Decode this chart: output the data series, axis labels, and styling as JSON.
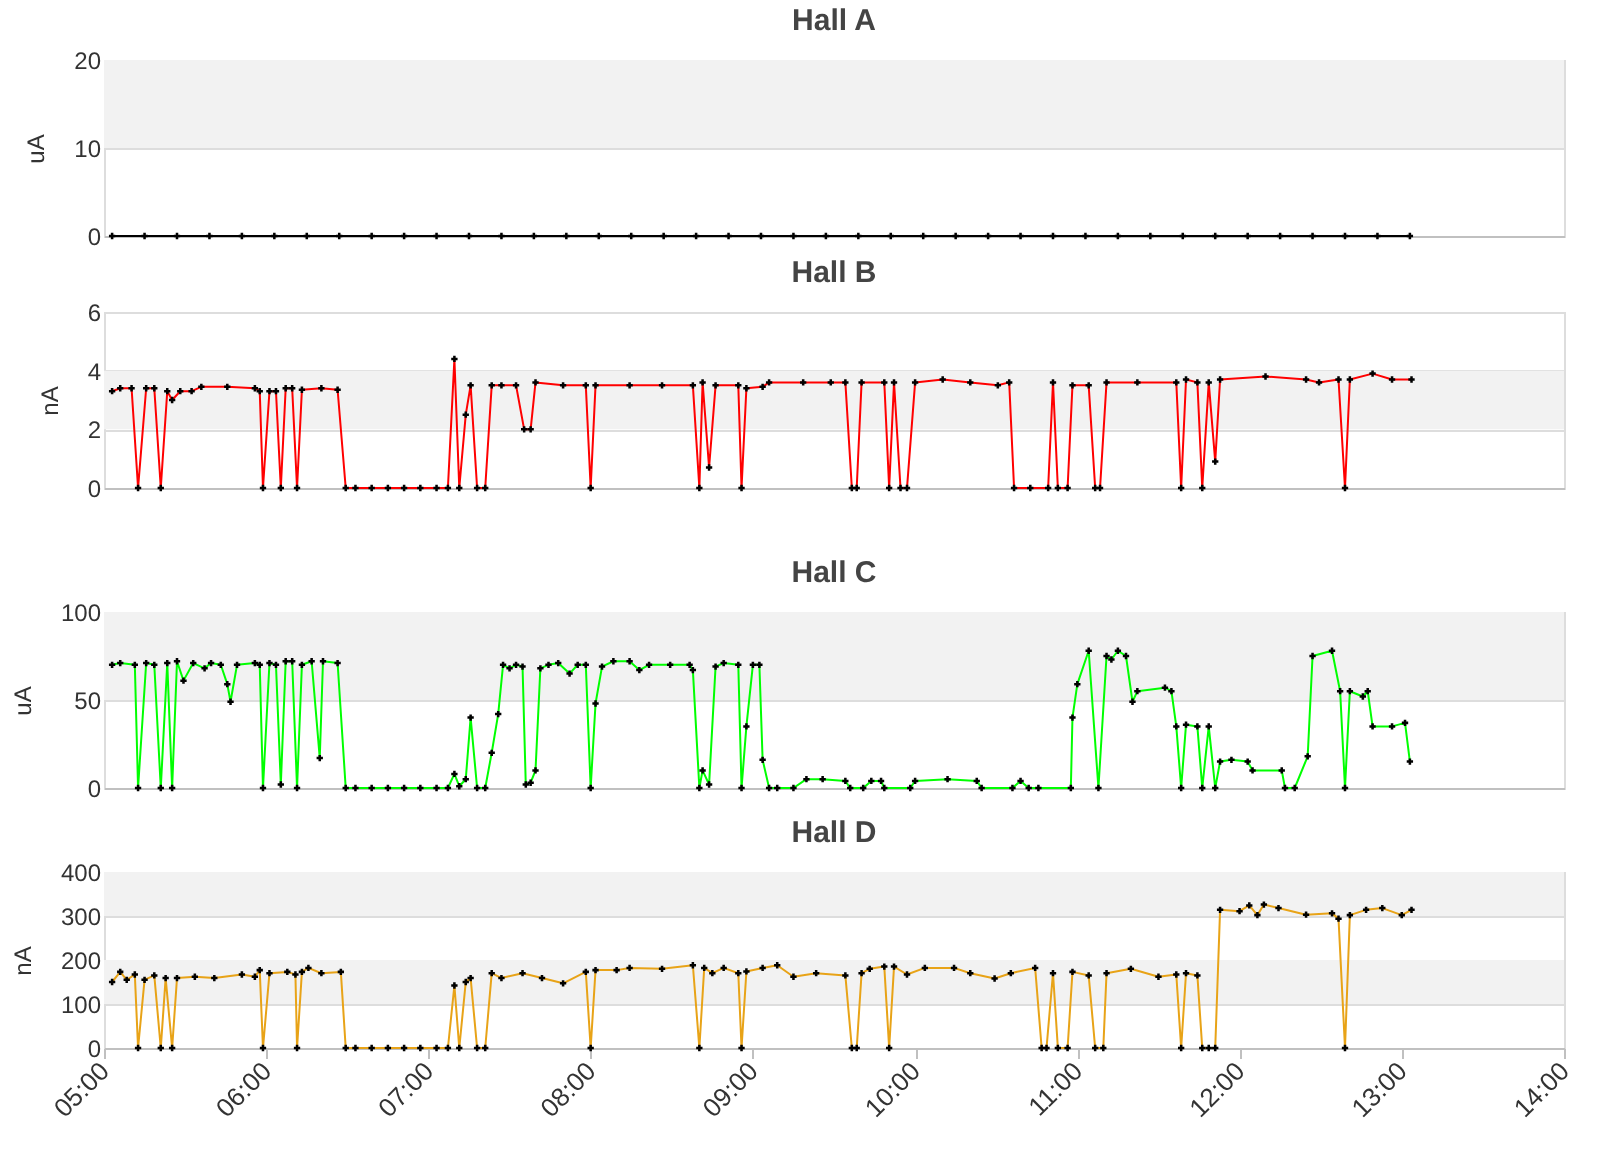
{
  "chart_data": [
    {
      "type": "line",
      "title": "Hall A",
      "ylabel": "uA",
      "marker": "cross",
      "grid": "y",
      "tick_labels": "y",
      "xlim": [
        5,
        14
      ],
      "ylim": [
        0,
        20
      ],
      "yticks": [
        0,
        10,
        20
      ],
      "bands": [
        {
          "axis": "y",
          "from": 10,
          "to": 20,
          "color": "#f2f2f2"
        }
      ],
      "x": [
        5.05,
        5.25,
        5.45,
        5.65,
        5.85,
        6.05,
        6.25,
        6.45,
        6.65,
        6.85,
        7.05,
        7.25,
        7.45,
        7.65,
        7.85,
        8.05,
        8.25,
        8.45,
        8.65,
        8.85,
        9.05,
        9.25,
        9.45,
        9.65,
        9.85,
        10.05,
        10.25,
        10.45,
        10.65,
        10.85,
        11.05,
        11.25,
        11.45,
        11.65,
        11.85,
        12.05,
        12.25,
        12.45,
        12.65,
        12.85,
        13.05
      ],
      "series": [
        {
          "color": "#000000",
          "values": [
            0,
            0,
            0,
            0,
            0,
            0,
            0,
            0,
            0,
            0,
            0,
            0,
            0,
            0,
            0,
            0,
            0,
            0,
            0,
            0,
            0,
            0,
            0,
            0,
            0,
            0,
            0,
            0,
            0,
            0,
            0,
            0,
            0,
            0,
            0,
            0,
            0,
            0,
            0,
            0,
            0
          ]
        }
      ]
    },
    {
      "type": "line",
      "title": "Hall B",
      "ylabel": "nA",
      "marker": "cross",
      "grid": "y",
      "tick_labels": "y",
      "xlim": [
        5,
        14
      ],
      "ylim": [
        0,
        6
      ],
      "yticks": [
        0,
        2,
        4,
        6
      ],
      "bands": [
        {
          "axis": "y",
          "from": 2,
          "to": 4,
          "color": "#f2f2f2"
        }
      ],
      "x": [
        5.05,
        5.1,
        5.17,
        5.21,
        5.26,
        5.31,
        5.35,
        5.39,
        5.42,
        5.47,
        5.54,
        5.6,
        5.76,
        5.93,
        5.96,
        5.98,
        6.02,
        6.06,
        6.09,
        6.12,
        6.16,
        6.19,
        6.22,
        6.34,
        6.44,
        6.49,
        6.55,
        6.65,
        6.75,
        6.85,
        6.95,
        7.05,
        7.12,
        7.16,
        7.19,
        7.23,
        7.26,
        7.3,
        7.35,
        7.39,
        7.45,
        7.54,
        7.59,
        7.63,
        7.66,
        7.83,
        7.97,
        8.0,
        8.03,
        8.24,
        8.44,
        8.63,
        8.67,
        8.69,
        8.73,
        8.77,
        8.91,
        8.93,
        8.96,
        9.06,
        9.1,
        9.31,
        9.48,
        9.57,
        9.61,
        9.64,
        9.67,
        9.81,
        9.84,
        9.87,
        9.91,
        9.95,
        10.0,
        10.17,
        10.34,
        10.51,
        10.58,
        10.61,
        10.71,
        10.82,
        10.85,
        10.88,
        10.94,
        10.97,
        11.07,
        11.11,
        11.14,
        11.18,
        11.37,
        11.61,
        11.64,
        11.67,
        11.74,
        11.77,
        11.81,
        11.85,
        11.88,
        12.16,
        12.41,
        12.49,
        12.61,
        12.65,
        12.68,
        12.82,
        12.94,
        13.06
      ],
      "series": [
        {
          "color": "#ff0000",
          "values": [
            3.3,
            3.4,
            3.4,
            0,
            3.4,
            3.4,
            0,
            3.3,
            3.0,
            3.3,
            3.3,
            3.45,
            3.45,
            3.4,
            3.3,
            0,
            3.3,
            3.3,
            0,
            3.4,
            3.4,
            0,
            3.35,
            3.4,
            3.35,
            0,
            0,
            0,
            0,
            0,
            0,
            0,
            0,
            4.4,
            0,
            2.5,
            3.5,
            0,
            0,
            3.5,
            3.5,
            3.5,
            2.0,
            2.0,
            3.6,
            3.5,
            3.5,
            0,
            3.5,
            3.5,
            3.5,
            3.5,
            0,
            3.6,
            0.7,
            3.5,
            3.5,
            0,
            3.4,
            3.45,
            3.6,
            3.6,
            3.6,
            3.6,
            0,
            0,
            3.6,
            3.6,
            0,
            3.6,
            0,
            0,
            3.6,
            3.7,
            3.6,
            3.5,
            3.6,
            0,
            0,
            0,
            3.6,
            0,
            0,
            3.5,
            3.5,
            0,
            0,
            3.6,
            3.6,
            3.6,
            0,
            3.7,
            3.6,
            0,
            3.6,
            0.9,
            3.7,
            3.8,
            3.7,
            3.6,
            3.7,
            0,
            3.7,
            3.9,
            3.7,
            3.7
          ]
        }
      ]
    },
    {
      "type": "line",
      "title": "Hall C",
      "ylabel": "uA",
      "marker": "cross",
      "grid": "y",
      "tick_labels": "y",
      "xlim": [
        5,
        14
      ],
      "ylim": [
        0,
        100
      ],
      "yticks": [
        0,
        50,
        100
      ],
      "bands": [
        {
          "axis": "y",
          "from": 50,
          "to": 100,
          "color": "#f2f2f2"
        }
      ],
      "x": [
        5.05,
        5.1,
        5.19,
        5.21,
        5.26,
        5.31,
        5.35,
        5.39,
        5.42,
        5.45,
        5.49,
        5.55,
        5.62,
        5.66,
        5.72,
        5.76,
        5.78,
        5.82,
        5.93,
        5.96,
        5.98,
        6.02,
        6.06,
        6.09,
        6.12,
        6.16,
        6.19,
        6.22,
        6.28,
        6.33,
        6.35,
        6.44,
        6.49,
        6.55,
        6.65,
        6.75,
        6.85,
        6.95,
        7.05,
        7.12,
        7.16,
        7.19,
        7.23,
        7.26,
        7.3,
        7.35,
        7.39,
        7.43,
        7.46,
        7.5,
        7.54,
        7.58,
        7.6,
        7.63,
        7.66,
        7.69,
        7.74,
        7.8,
        7.87,
        7.92,
        7.97,
        8.0,
        8.03,
        8.07,
        8.14,
        8.24,
        8.3,
        8.36,
        8.49,
        8.61,
        8.63,
        8.67,
        8.69,
        8.73,
        8.77,
        8.82,
        8.91,
        8.93,
        8.96,
        9.0,
        9.04,
        9.06,
        9.1,
        9.15,
        9.25,
        9.33,
        9.43,
        9.57,
        9.6,
        9.68,
        9.73,
        9.79,
        9.81,
        9.97,
        10.0,
        10.2,
        10.38,
        10.41,
        10.6,
        10.65,
        10.7,
        10.76,
        10.96,
        10.97,
        11.0,
        11.07,
        11.13,
        11.18,
        11.21,
        11.25,
        11.3,
        11.34,
        11.37,
        11.54,
        11.58,
        11.61,
        11.64,
        11.67,
        11.74,
        11.77,
        11.81,
        11.85,
        11.88,
        11.95,
        12.05,
        12.08,
        12.26,
        12.28,
        12.34,
        12.42,
        12.45,
        12.57,
        12.62,
        12.65,
        12.68,
        12.76,
        12.79,
        12.82,
        12.94,
        13.02,
        13.05
      ],
      "series": [
        {
          "color": "#00ff00",
          "values": [
            70,
            71,
            70,
            0,
            71,
            70,
            0,
            71,
            0,
            72,
            61,
            71,
            68,
            71,
            70,
            59,
            49,
            70,
            71,
            70,
            0,
            71,
            70,
            2,
            72,
            72,
            0,
            70,
            72,
            17,
            72,
            71,
            0,
            0,
            0,
            0,
            0,
            0,
            0,
            0,
            8,
            1,
            5,
            40,
            0,
            0,
            20,
            42,
            70,
            68,
            70,
            69,
            2,
            3,
            10,
            68,
            70,
            71,
            65,
            70,
            70,
            0,
            48,
            69,
            72,
            72,
            67,
            70,
            70,
            70,
            67,
            0,
            10,
            2,
            69,
            71,
            70,
            0,
            35,
            70,
            70,
            16,
            0,
            0,
            0,
            5,
            5,
            4,
            0,
            0,
            4,
            4,
            0,
            0,
            4,
            5,
            4,
            0,
            0,
            4,
            0,
            0,
            0,
            40,
            59,
            78,
            0,
            75,
            73,
            78,
            75,
            49,
            55,
            57,
            55,
            35,
            0,
            36,
            35,
            0,
            35,
            0,
            15,
            16,
            15,
            10,
            10,
            0,
            0,
            18,
            75,
            78,
            55,
            0,
            55,
            52,
            55,
            35,
            35,
            37,
            15
          ]
        }
      ]
    },
    {
      "type": "line",
      "title": "Hall D",
      "ylabel": "nA",
      "marker": "cross",
      "grid": "y",
      "xlim": [
        5,
        14
      ],
      "xticks": [
        {
          "value": 5,
          "label": "05:00"
        },
        {
          "value": 6,
          "label": "06:00"
        },
        {
          "value": 7,
          "label": "07:00"
        },
        {
          "value": 8,
          "label": "08:00"
        },
        {
          "value": 9,
          "label": "09:00"
        },
        {
          "value": 10,
          "label": "10:00"
        },
        {
          "value": 11,
          "label": "11:00"
        },
        {
          "value": 12,
          "label": "12:00"
        },
        {
          "value": 13,
          "label": "13:00"
        },
        {
          "value": 14,
          "label": "14:00"
        }
      ],
      "ylim": [
        0,
        400
      ],
      "yticks": [
        0,
        100,
        200,
        300,
        400
      ],
      "bands": [
        {
          "axis": "y",
          "from": 100,
          "to": 200,
          "color": "#f2f2f2"
        },
        {
          "axis": "y",
          "from": 300,
          "to": 400,
          "color": "#f2f2f2"
        }
      ],
      "x": [
        5.05,
        5.1,
        5.14,
        5.19,
        5.21,
        5.25,
        5.31,
        5.35,
        5.38,
        5.42,
        5.45,
        5.56,
        5.68,
        5.85,
        5.93,
        5.96,
        5.98,
        6.02,
        6.13,
        6.18,
        6.19,
        6.22,
        6.26,
        6.34,
        6.46,
        6.49,
        6.55,
        6.65,
        6.75,
        6.85,
        6.95,
        7.05,
        7.12,
        7.16,
        7.19,
        7.23,
        7.26,
        7.3,
        7.35,
        7.39,
        7.45,
        7.58,
        7.7,
        7.83,
        7.97,
        8.0,
        8.03,
        8.16,
        8.24,
        8.44,
        8.63,
        8.67,
        8.7,
        8.75,
        8.82,
        8.91,
        8.93,
        8.96,
        9.06,
        9.15,
        9.25,
        9.39,
        9.57,
        9.61,
        9.64,
        9.67,
        9.72,
        9.81,
        9.84,
        9.87,
        9.95,
        10.06,
        10.24,
        10.34,
        10.49,
        10.59,
        10.74,
        10.78,
        10.81,
        10.85,
        10.88,
        10.94,
        10.97,
        11.07,
        11.11,
        11.16,
        11.18,
        11.33,
        11.5,
        11.61,
        11.64,
        11.67,
        11.74,
        11.77,
        11.81,
        11.85,
        11.88,
        12.0,
        12.06,
        12.11,
        12.15,
        12.24,
        12.41,
        12.57,
        12.61,
        12.65,
        12.68,
        12.78,
        12.88,
        13.0,
        13.06
      ],
      "series": [
        {
          "color": "#e8a317",
          "values": [
            150,
            173,
            155,
            167,
            0,
            155,
            165,
            0,
            159,
            0,
            159,
            162,
            159,
            167,
            162,
            177,
            0,
            170,
            173,
            167,
            0,
            173,
            182,
            170,
            173,
            0,
            0,
            0,
            0,
            0,
            0,
            0,
            0,
            142,
            0,
            150,
            159,
            0,
            0,
            170,
            159,
            170,
            159,
            147,
            173,
            0,
            177,
            177,
            182,
            180,
            188,
            0,
            182,
            170,
            182,
            170,
            0,
            174,
            182,
            188,
            162,
            170,
            165,
            0,
            0,
            170,
            180,
            185,
            0,
            185,
            167,
            182,
            182,
            170,
            158,
            170,
            182,
            0,
            0,
            170,
            0,
            0,
            173,
            165,
            0,
            0,
            170,
            180,
            162,
            167,
            0,
            170,
            165,
            0,
            0,
            0,
            314,
            311,
            324,
            302,
            326,
            318,
            303,
            306,
            294,
            0,
            302,
            314,
            318,
            302,
            314
          ]
        }
      ]
    }
  ]
}
